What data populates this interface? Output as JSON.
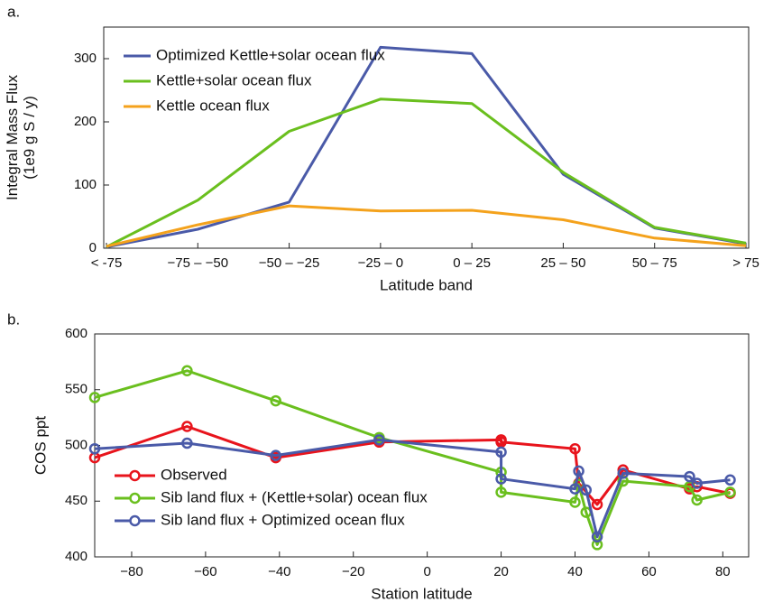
{
  "chart_data": [
    {
      "type": "line",
      "panel_label": "a.",
      "ylabel": [
        "Integral Mass Flux",
        "(1e9 g S / y)"
      ],
      "xlabel": "Latitude band",
      "categories": [
        "< -75",
        "−75 – −50",
        "−50 – −25",
        "−25 – 0",
        "0 – 25",
        "25 – 50",
        "50 – 75",
        "> 75"
      ],
      "ylim": [
        0,
        350
      ],
      "yticks": [
        0,
        100,
        200,
        300
      ],
      "legend": "upper left",
      "markers": false,
      "series": [
        {
          "name": "Optimized Kettle+solar ocean flux",
          "color": "#4a5aa8",
          "values": [
            2,
            30,
            73,
            318,
            308,
            117,
            32,
            7
          ]
        },
        {
          "name": "Kettle+solar ocean flux",
          "color": "#6abf1e",
          "values": [
            2,
            76,
            185,
            236,
            229,
            120,
            33,
            8
          ]
        },
        {
          "name": "Kettle ocean flux",
          "color": "#f4a21c",
          "values": [
            3,
            37,
            67,
            59,
            60,
            45,
            16,
            4
          ]
        }
      ]
    },
    {
      "type": "line",
      "panel_label": "b.",
      "ylabel": [
        "COS ppt"
      ],
      "xlabel": "Station latitude",
      "xlim": [
        -90,
        87
      ],
      "xticks": [
        {
          "value": -80,
          "label": "−80"
        },
        {
          "value": -60,
          "label": "−60"
        },
        {
          "value": -40,
          "label": "−40"
        },
        {
          "value": -20,
          "label": "−20"
        },
        0,
        20,
        40,
        60,
        80
      ],
      "ylim": [
        400,
        600
      ],
      "yticks": [
        400,
        450,
        500,
        550,
        600
      ],
      "legend": "lower left",
      "markers": true,
      "series": [
        {
          "name": "Observed",
          "color": "#e8141c",
          "x": [
            -90,
            -65,
            -41,
            -13,
            20,
            20,
            40,
            41,
            46,
            53,
            71,
            73,
            82
          ],
          "values": [
            489,
            517,
            489,
            503,
            505,
            503,
            497,
            466,
            447,
            478,
            461,
            463,
            457
          ]
        },
        {
          "name": "Sib land flux + (Kettle+solar) ocean flux",
          "color": "#6abf1e",
          "x": [
            -90,
            -65,
            -41,
            -13,
            20,
            20,
            40,
            41,
            43,
            46,
            53,
            71,
            73,
            82
          ],
          "values": [
            543,
            567,
            540,
            507,
            476,
            458,
            449,
            465,
            440,
            411,
            468,
            463,
            451,
            458
          ]
        },
        {
          "name": "Sib land flux + Optimized ocean flux",
          "color": "#4a5aa8",
          "x": [
            -90,
            -65,
            -41,
            -13,
            20,
            20,
            40,
            41,
            43,
            46,
            53,
            71,
            73,
            82
          ],
          "values": [
            497,
            502,
            491,
            505,
            494,
            470,
            461,
            477,
            460,
            418,
            475,
            472,
            466,
            469
          ]
        }
      ]
    }
  ]
}
